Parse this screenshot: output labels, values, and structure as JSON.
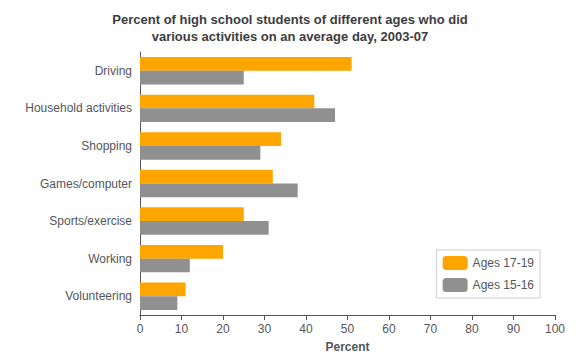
{
  "chart_data": {
    "type": "bar",
    "orientation": "horizontal",
    "title": "Percent of high school students of different ages who did\nvarious activities on an average day, 2003-07",
    "categories": [
      "Driving",
      "Household activities",
      "Shopping",
      "Games/computer",
      "Sports/exercise",
      "Working",
      "Volunteering"
    ],
    "series": [
      {
        "name": "Ages 17-19",
        "color": "#FFA500",
        "values": [
          51,
          42,
          34,
          32,
          25,
          20,
          11
        ]
      },
      {
        "name": "Ages 15-16",
        "color": "#909090",
        "values": [
          25,
          47,
          29,
          38,
          31,
          12,
          9
        ]
      }
    ],
    "xlabel": "Percent",
    "xlim": [
      0,
      100
    ],
    "xticks": [
      0,
      10,
      20,
      30,
      40,
      50,
      60,
      70,
      80,
      90,
      100
    ],
    "grid": false,
    "legend": "lower right"
  }
}
